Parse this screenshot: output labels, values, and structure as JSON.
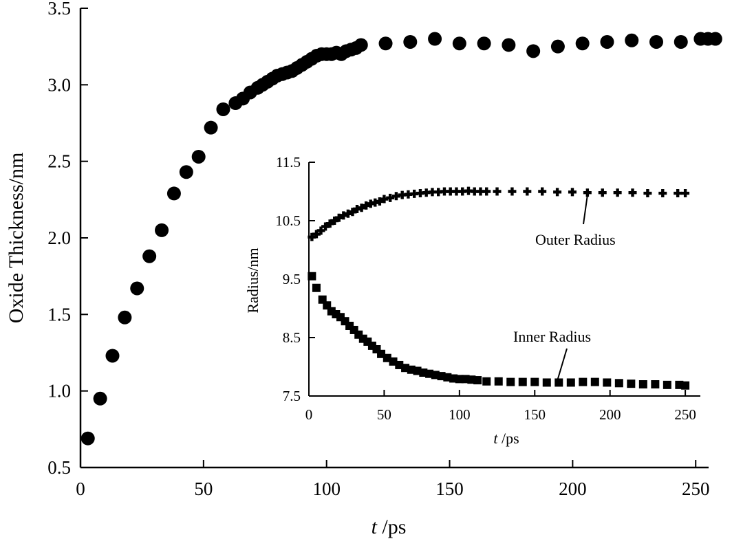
{
  "chart_data": [
    {
      "id": "main",
      "type": "scatter",
      "title": "",
      "xlabel_italic": "t",
      "xlabel_unit": "/ps",
      "ylabel": "Oxide Thickness/nm",
      "xlim": [
        0,
        260
      ],
      "ylim": [
        0.5,
        3.5
      ],
      "xticks": [
        0,
        50,
        100,
        150,
        200,
        250
      ],
      "yticks": [
        0.5,
        1.0,
        1.5,
        2.0,
        2.5,
        3.0,
        3.5
      ],
      "xtick_labels": [
        "0",
        "50",
        "100",
        "150",
        "200",
        "250"
      ],
      "ytick_labels": [
        "0.5",
        "1.0",
        "1.5",
        "2.0",
        "2.5",
        "3.0",
        "3.5"
      ],
      "series": [
        {
          "name": "Oxide Thickness",
          "marker": "circle",
          "x": [
            3,
            8,
            13,
            18,
            23,
            28,
            33,
            38,
            43,
            48,
            53,
            58,
            63,
            66,
            69,
            72,
            74,
            76,
            78,
            80,
            82,
            84,
            86,
            88,
            90,
            92,
            94,
            96,
            98,
            100,
            102,
            104,
            106,
            108,
            110,
            112,
            114,
            124,
            134,
            144,
            154,
            164,
            174,
            184,
            194,
            204,
            214,
            224,
            234,
            244,
            252,
            255,
            258
          ],
          "y": [
            0.69,
            0.95,
            1.23,
            1.48,
            1.67,
            1.88,
            2.05,
            2.29,
            2.43,
            2.53,
            2.72,
            2.84,
            2.88,
            2.91,
            2.95,
            2.98,
            3.0,
            3.02,
            3.04,
            3.06,
            3.07,
            3.08,
            3.09,
            3.11,
            3.13,
            3.15,
            3.17,
            3.19,
            3.2,
            3.2,
            3.2,
            3.21,
            3.2,
            3.22,
            3.23,
            3.24,
            3.26,
            3.27,
            3.28,
            3.3,
            3.27,
            3.27,
            3.26,
            3.22,
            3.25,
            3.27,
            3.28,
            3.29,
            3.28,
            3.28,
            3.3,
            3.3,
            3.3
          ]
        }
      ]
    },
    {
      "id": "inset",
      "type": "scatter",
      "xlabel_italic": "t",
      "xlabel_unit": "/ps",
      "ylabel": "Radius/nm",
      "xlim": [
        0,
        260
      ],
      "ylim": [
        7.5,
        11.5
      ],
      "xticks": [
        0,
        50,
        100,
        150,
        200,
        250
      ],
      "yticks": [
        7.5,
        8.5,
        9.5,
        10.5,
        11.5
      ],
      "xtick_labels": [
        "0",
        "50",
        "100",
        "150",
        "200",
        "250"
      ],
      "ytick_labels": [
        "7.5",
        "8.5",
        "9.5",
        "10.5",
        "11.5"
      ],
      "series": [
        {
          "name": "Outer Radius",
          "marker": "plus",
          "x": [
            2,
            5,
            8,
            11,
            14,
            17,
            20,
            23,
            26,
            29,
            32,
            35,
            38,
            41,
            44,
            47,
            50,
            54,
            58,
            62,
            66,
            70,
            74,
            78,
            82,
            86,
            90,
            94,
            98,
            102,
            106,
            110,
            114,
            118,
            125,
            135,
            145,
            155,
            165,
            175,
            185,
            195,
            205,
            215,
            225,
            235,
            245,
            250
          ],
          "y": [
            10.22,
            10.27,
            10.33,
            10.4,
            10.45,
            10.5,
            10.55,
            10.59,
            10.62,
            10.65,
            10.7,
            10.72,
            10.76,
            10.79,
            10.81,
            10.83,
            10.87,
            10.89,
            10.92,
            10.94,
            10.95,
            10.96,
            10.97,
            10.98,
            10.99,
            10.99,
            11.0,
            11.0,
            11.0,
            11.0,
            11.01,
            11.0,
            11.0,
            11.0,
            11.0,
            11.0,
            11.0,
            11.0,
            10.99,
            10.99,
            10.98,
            10.98,
            10.98,
            10.98,
            10.97,
            10.97,
            10.97,
            10.97
          ]
        },
        {
          "name": "Inner Radius",
          "marker": "square",
          "x": [
            2,
            5,
            9,
            12,
            15,
            18,
            21,
            24,
            27,
            30,
            33,
            36,
            39,
            42,
            45,
            48,
            52,
            56,
            60,
            64,
            68,
            72,
            76,
            80,
            84,
            88,
            92,
            96,
            100,
            104,
            108,
            112,
            118,
            126,
            134,
            142,
            150,
            158,
            166,
            174,
            182,
            190,
            198,
            206,
            214,
            222,
            230,
            238,
            246,
            250
          ],
          "y": [
            9.55,
            9.35,
            9.15,
            9.05,
            8.95,
            8.9,
            8.85,
            8.78,
            8.7,
            8.63,
            8.55,
            8.48,
            8.43,
            8.36,
            8.3,
            8.22,
            8.15,
            8.09,
            8.03,
            7.98,
            7.95,
            7.93,
            7.9,
            7.88,
            7.86,
            7.84,
            7.82,
            7.8,
            7.79,
            7.79,
            7.78,
            7.77,
            7.75,
            7.75,
            7.74,
            7.74,
            7.74,
            7.73,
            7.73,
            7.73,
            7.74,
            7.74,
            7.73,
            7.72,
            7.71,
            7.7,
            7.7,
            7.69,
            7.69,
            7.68
          ]
        }
      ],
      "annotations": [
        {
          "text": "Outer Radius",
          "series": "Outer Radius"
        },
        {
          "text": "Inner Radius",
          "series": "Inner Radius"
        }
      ]
    }
  ]
}
